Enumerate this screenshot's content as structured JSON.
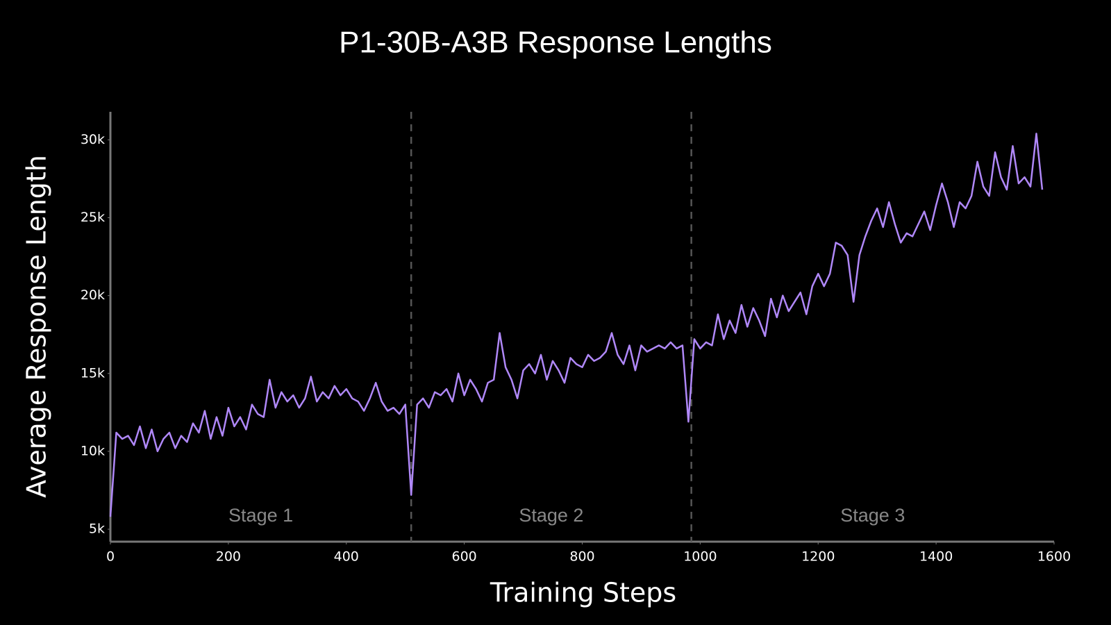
{
  "chart_data": {
    "type": "line",
    "title": "P1-30B-A3B Response Lengths",
    "x_label": "Training Steps",
    "y_label": "Average Response Length",
    "color": "#b088f9",
    "xlim": [
      0,
      1600
    ],
    "ylim": [
      4200,
      31800
    ],
    "xticks": [
      0,
      200,
      400,
      600,
      800,
      1000,
      1200,
      1400,
      1600
    ],
    "yticks": [
      {
        "value": 5000,
        "label": "5k"
      },
      {
        "value": 10000,
        "label": "10k"
      },
      {
        "value": 15000,
        "label": "15k"
      },
      {
        "value": 20000,
        "label": "20k"
      },
      {
        "value": 25000,
        "label": "25k"
      },
      {
        "value": 30000,
        "label": "30k"
      }
    ],
    "stage_boundaries": [
      510,
      985
    ],
    "annotations": [
      "Stage 1",
      "Stage 2",
      "Stage 3"
    ],
    "x": [
      0,
      10,
      20,
      30,
      40,
      50,
      60,
      70,
      80,
      90,
      100,
      110,
      120,
      130,
      140,
      150,
      160,
      170,
      180,
      190,
      200,
      210,
      220,
      230,
      240,
      250,
      260,
      270,
      280,
      290,
      300,
      310,
      320,
      330,
      340,
      350,
      360,
      370,
      380,
      390,
      400,
      410,
      420,
      430,
      440,
      450,
      460,
      470,
      480,
      490,
      500,
      510,
      520,
      530,
      540,
      550,
      560,
      570,
      580,
      590,
      600,
      610,
      620,
      630,
      640,
      650,
      660,
      670,
      680,
      690,
      700,
      710,
      720,
      730,
      740,
      750,
      760,
      770,
      780,
      790,
      800,
      810,
      820,
      830,
      840,
      850,
      860,
      870,
      880,
      890,
      900,
      910,
      920,
      930,
      940,
      950,
      960,
      970,
      980,
      990,
      1000,
      1010,
      1020,
      1030,
      1040,
      1050,
      1060,
      1070,
      1080,
      1090,
      1100,
      1110,
      1120,
      1130,
      1140,
      1150,
      1160,
      1170,
      1180,
      1190,
      1200,
      1210,
      1220,
      1230,
      1240,
      1250,
      1260,
      1270,
      1280,
      1290,
      1300,
      1310,
      1320,
      1330,
      1340,
      1350,
      1360,
      1370,
      1380,
      1390,
      1400,
      1410,
      1420,
      1430,
      1440,
      1450,
      1460,
      1470,
      1480,
      1490,
      1500,
      1510,
      1520,
      1530,
      1540,
      1550,
      1560,
      1570,
      1580
    ],
    "values": [
      5800,
      11200,
      10800,
      11000,
      10400,
      11600,
      10200,
      11400,
      10000,
      10800,
      11200,
      10200,
      11000,
      10600,
      11800,
      11200,
      12600,
      10800,
      12200,
      11000,
      12800,
      11600,
      12200,
      11400,
      13000,
      12400,
      12200,
      14600,
      12800,
      13800,
      13200,
      13600,
      12800,
      13400,
      14800,
      13200,
      13800,
      13400,
      14200,
      13600,
      14000,
      13400,
      13200,
      12600,
      13400,
      14400,
      13200,
      12600,
      12800,
      12400,
      13000,
      7200,
      13000,
      13400,
      12800,
      13800,
      13600,
      14000,
      13200,
      15000,
      13600,
      14600,
      14000,
      13200,
      14400,
      14600,
      17600,
      15400,
      14600,
      13400,
      15200,
      15600,
      15000,
      16200,
      14600,
      15800,
      15200,
      14400,
      16000,
      15600,
      15400,
      16200,
      15800,
      16000,
      16400,
      17600,
      16200,
      15600,
      16800,
      15200,
      16800,
      16400,
      16600,
      16800,
      16600,
      17000,
      16600,
      16800,
      11900,
      17200,
      16600,
      17000,
      16800,
      18800,
      17200,
      18400,
      17600,
      19400,
      18000,
      19200,
      18400,
      17400,
      19800,
      18600,
      20000,
      19000,
      19600,
      20200,
      18800,
      20600,
      21400,
      20600,
      21400,
      23400,
      23200,
      22600,
      19600,
      22600,
      23800,
      24800,
      25600,
      24400,
      26000,
      24600,
      23400,
      24000,
      23800,
      24600,
      25400,
      24200,
      25800,
      27200,
      26000,
      24400,
      26000,
      25600,
      26400,
      28600,
      27000,
      26400,
      29200,
      27600,
      26800,
      29600,
      27200,
      27600,
      27000,
      30400,
      26800
    ]
  }
}
